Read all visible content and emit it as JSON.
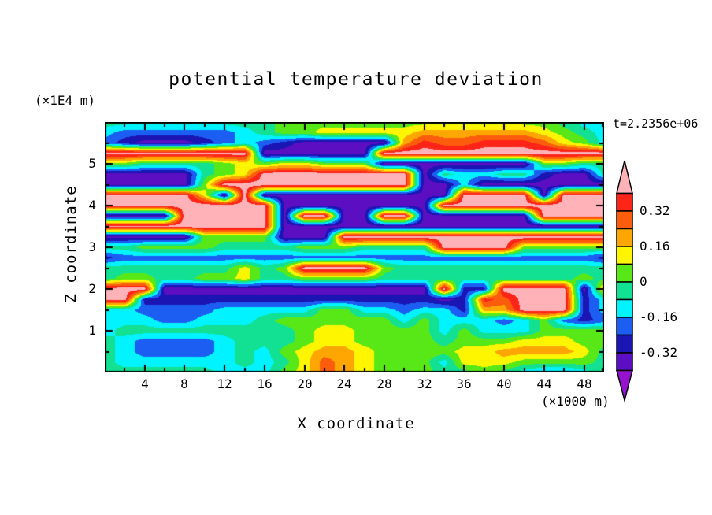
{
  "chart_data": {
    "type": "filled_contour",
    "title": "potential temperature deviation",
    "time_label": "t=2.2356e+06",
    "xlabel": "X coordinate",
    "x_unit": "(×1000 m)",
    "ylabel": "Z coordinate",
    "y_unit": "(×1E4 m)",
    "x_range": [
      0,
      50
    ],
    "z_range": [
      0,
      6
    ],
    "x_axis": {
      "major": [
        4,
        8,
        12,
        16,
        20,
        24,
        28,
        32,
        36,
        40,
        44,
        48
      ],
      "labels": [
        "4",
        "8",
        "12",
        "16",
        "20",
        "24",
        "28",
        "32",
        "36",
        "40",
        "44",
        "48"
      ],
      "minor": [
        2,
        6,
        10,
        14,
        18,
        22,
        26,
        30,
        34,
        38,
        42,
        46,
        50
      ]
    },
    "z_axis": {
      "major": [
        1,
        2,
        3,
        4,
        5
      ],
      "labels": [
        "1",
        "2",
        "3",
        "4",
        "5"
      ],
      "minor": [
        0.5,
        1.5,
        2.5,
        3.5,
        4.5,
        5.5
      ]
    },
    "levels": [
      -0.4,
      -0.32,
      -0.24,
      -0.16,
      -0.08,
      0.0,
      0.08,
      0.16,
      0.24,
      0.32,
      0.4
    ],
    "colors": [
      "#9512cf",
      "#5c0ec2",
      "#1a15b3",
      "#1c5ef2",
      "#00f3ff",
      "#12e193",
      "#59e817",
      "#fef600",
      "#ffa602",
      "#fc5d0d",
      "#ff2418",
      "#ffb3b8"
    ],
    "colorbar": {
      "labels": [
        "0.32",
        "0.16",
        "0",
        "-0.16",
        "-0.32"
      ],
      "label_boundaries": [
        0.32,
        0.16,
        0.0,
        -0.16,
        -0.32
      ]
    },
    "grid": {
      "x": [
        0,
        2,
        4,
        6,
        8,
        10,
        12,
        14,
        16,
        18,
        20,
        22,
        24,
        26,
        28,
        30,
        32,
        34,
        36,
        38,
        40,
        42,
        44,
        46,
        48,
        50
      ],
      "z": [
        6.0,
        5.75,
        5.5,
        5.25,
        5.0,
        4.75,
        4.5,
        4.25,
        4.0,
        3.75,
        3.5,
        3.25,
        3.0,
        2.75,
        2.5,
        2.25,
        2.0,
        1.75,
        1.5,
        1.25,
        1.0,
        0.75,
        0.5,
        0.25,
        0.0
      ],
      "values": [
        [
          -0.04,
          -0.04,
          -0.04,
          -0.04,
          -0.04,
          -0.04,
          -0.04,
          -0.04,
          -0.04,
          0.04,
          0.04,
          0.04,
          0.04,
          0.04,
          0.04,
          0.04,
          0.04,
          0.04,
          0.04,
          0.04,
          0.04,
          0.04,
          0.04,
          -0.04,
          -0.12,
          -0.12
        ],
        [
          -0.12,
          -0.2,
          -0.2,
          -0.2,
          -0.2,
          -0.2,
          -0.2,
          -0.12,
          -0.04,
          0.04,
          0.04,
          0.12,
          0.12,
          0.12,
          0.12,
          0.12,
          0.2,
          0.2,
          0.2,
          0.2,
          0.2,
          0.2,
          0.12,
          0.04,
          -0.04,
          -0.12
        ],
        [
          -0.2,
          -0.28,
          -0.36,
          -0.36,
          -0.36,
          -0.28,
          -0.2,
          -0.12,
          -0.2,
          -0.28,
          -0.36,
          -0.36,
          -0.36,
          -0.36,
          -0.36,
          0.2,
          0.36,
          0.28,
          0.28,
          0.36,
          0.36,
          0.36,
          0.28,
          0.12,
          0.04,
          -0.12
        ],
        [
          0.45,
          0.45,
          0.45,
          0.45,
          0.45,
          0.45,
          0.45,
          0.45,
          -0.36,
          -0.36,
          -0.36,
          -0.36,
          -0.36,
          -0.36,
          0.45,
          0.45,
          0.45,
          0.45,
          0.45,
          0.45,
          0.45,
          0.45,
          0.45,
          0.45,
          0.45,
          0.45
        ],
        [
          0.04,
          0.04,
          -0.04,
          -0.04,
          -0.04,
          -0.04,
          0.04,
          0.12,
          0.04,
          0.12,
          0.12,
          0.04,
          0.04,
          0.04,
          -0.36,
          -0.36,
          -0.36,
          -0.36,
          -0.36,
          -0.36,
          -0.36,
          -0.36,
          0.04,
          0.04,
          -0.04,
          -0.04
        ],
        [
          -0.36,
          -0.36,
          -0.36,
          -0.36,
          -0.36,
          -0.04,
          0.04,
          0.12,
          0.45,
          0.45,
          0.45,
          0.45,
          0.45,
          0.45,
          0.45,
          0.45,
          -0.36,
          -0.04,
          -0.12,
          -0.12,
          -0.04,
          -0.04,
          -0.28,
          -0.36,
          -0.36,
          -0.04
        ],
        [
          -0.36,
          -0.36,
          -0.36,
          -0.36,
          -0.36,
          0.04,
          0.45,
          0.45,
          0.45,
          0.45,
          0.45,
          0.45,
          0.45,
          0.45,
          0.45,
          0.45,
          -0.36,
          -0.36,
          -0.12,
          -0.36,
          -0.36,
          -0.36,
          -0.36,
          -0.36,
          -0.36,
          -0.36
        ],
        [
          0.45,
          0.45,
          0.45,
          0.45,
          0.45,
          0.12,
          -0.36,
          0.45,
          -0.36,
          -0.36,
          -0.36,
          -0.36,
          -0.36,
          -0.36,
          -0.36,
          -0.36,
          -0.36,
          -0.36,
          0.45,
          0.45,
          0.45,
          0.45,
          -0.36,
          0.45,
          0.45,
          0.45
        ],
        [
          0.45,
          0.45,
          0.45,
          0.45,
          0.45,
          0.45,
          0.45,
          0.45,
          0.45,
          -0.36,
          -0.36,
          -0.36,
          -0.36,
          -0.36,
          -0.36,
          -0.36,
          -0.36,
          0.45,
          0.45,
          0.45,
          0.45,
          0.45,
          0.45,
          0.45,
          0.45,
          0.45
        ],
        [
          -0.36,
          -0.36,
          -0.36,
          -0.36,
          0.45,
          0.45,
          0.45,
          0.45,
          0.45,
          -0.36,
          0.45,
          0.45,
          -0.36,
          -0.36,
          0.45,
          0.45,
          -0.36,
          -0.36,
          -0.36,
          -0.36,
          -0.36,
          -0.36,
          0.45,
          0.45,
          0.45,
          0.45
        ],
        [
          0.45,
          0.45,
          0.45,
          0.45,
          0.45,
          0.45,
          0.45,
          0.45,
          0.45,
          -0.36,
          -0.36,
          -0.36,
          -0.36,
          -0.36,
          -0.36,
          -0.36,
          -0.36,
          -0.36,
          -0.36,
          -0.36,
          -0.36,
          -0.36,
          -0.36,
          -0.36,
          -0.36,
          -0.36
        ],
        [
          -0.36,
          -0.36,
          -0.36,
          -0.36,
          -0.36,
          0.04,
          0.04,
          0.04,
          0.04,
          -0.36,
          -0.36,
          -0.36,
          0.45,
          0.45,
          0.45,
          0.45,
          0.45,
          0.45,
          0.45,
          0.45,
          0.45,
          0.45,
          0.45,
          0.45,
          0.45,
          0.45
        ],
        [
          -0.04,
          -0.04,
          0.04,
          0.04,
          0.04,
          0.04,
          -0.04,
          -0.04,
          -0.04,
          -0.04,
          0.04,
          0.04,
          0.04,
          -0.04,
          -0.04,
          -0.04,
          -0.04,
          0.45,
          0.45,
          0.45,
          0.45,
          0.04,
          0.04,
          0.04,
          0.04,
          0.04
        ],
        [
          -0.28,
          -0.2,
          -0.2,
          -0.2,
          -0.2,
          -0.2,
          -0.2,
          -0.2,
          -0.2,
          -0.2,
          -0.2,
          -0.2,
          -0.2,
          -0.2,
          -0.2,
          -0.2,
          -0.2,
          -0.2,
          -0.2,
          -0.2,
          -0.2,
          -0.2,
          -0.2,
          -0.2,
          -0.2,
          -0.28
        ],
        [
          -0.04,
          -0.04,
          -0.04,
          -0.04,
          -0.04,
          -0.04,
          -0.04,
          0.12,
          -0.04,
          0.04,
          0.45,
          0.45,
          0.45,
          0.45,
          0.04,
          -0.04,
          -0.04,
          -0.04,
          -0.04,
          -0.04,
          -0.04,
          -0.04,
          -0.04,
          -0.04,
          -0.04,
          -0.04
        ],
        [
          -0.04,
          0.04,
          0.04,
          -0.04,
          -0.04,
          0.04,
          0.04,
          0.12,
          -0.04,
          -0.04,
          0.04,
          0.04,
          0.04,
          0.04,
          -0.04,
          -0.04,
          -0.04,
          -0.04,
          -0.04,
          -0.04,
          -0.04,
          -0.04,
          -0.04,
          -0.04,
          0.04,
          -0.04
        ],
        [
          0.45,
          0.45,
          0.45,
          -0.36,
          -0.36,
          -0.36,
          -0.36,
          -0.36,
          -0.36,
          -0.36,
          -0.36,
          -0.36,
          -0.36,
          -0.36,
          -0.36,
          -0.36,
          -0.36,
          0.45,
          -0.28,
          -0.28,
          0.45,
          0.45,
          0.45,
          0.45,
          -0.36,
          0.2
        ],
        [
          0.45,
          0.45,
          -0.28,
          -0.28,
          -0.28,
          -0.28,
          -0.28,
          -0.28,
          -0.28,
          -0.28,
          -0.28,
          -0.28,
          -0.28,
          -0.28,
          -0.28,
          -0.28,
          -0.28,
          -0.36,
          -0.28,
          0.36,
          0.28,
          0.45,
          0.45,
          0.45,
          -0.28,
          -0.12
        ],
        [
          -0.12,
          -0.12,
          -0.2,
          -0.2,
          -0.2,
          -0.2,
          -0.12,
          -0.12,
          -0.12,
          -0.12,
          -0.12,
          0.04,
          0.04,
          -0.12,
          -0.12,
          -0.2,
          -0.12,
          -0.12,
          -0.28,
          0.2,
          0.2,
          0.45,
          0.45,
          0.45,
          -0.28,
          -0.12
        ],
        [
          -0.12,
          -0.12,
          -0.12,
          -0.2,
          -0.2,
          -0.12,
          -0.12,
          -0.12,
          -0.04,
          0.04,
          0.04,
          0.04,
          0.04,
          0.04,
          0.04,
          -0.12,
          0.04,
          -0.12,
          -0.12,
          -0.12,
          -0.2,
          -0.12,
          0.04,
          -0.2,
          -0.28,
          -0.2
        ],
        [
          -0.12,
          -0.04,
          -0.04,
          -0.04,
          -0.04,
          -0.04,
          -0.04,
          -0.04,
          -0.04,
          -0.04,
          0.04,
          0.12,
          0.12,
          0.04,
          0.04,
          0.04,
          0.04,
          -0.12,
          0.04,
          -0.12,
          -0.12,
          -0.12,
          0.04,
          0.04,
          0.04,
          0.04
        ],
        [
          -0.04,
          -0.12,
          -0.2,
          -0.2,
          -0.2,
          -0.2,
          -0.12,
          -0.04,
          -0.04,
          -0.04,
          0.04,
          0.12,
          0.12,
          0.04,
          0.04,
          0.04,
          0.04,
          -0.04,
          0.04,
          0.04,
          0.04,
          0.12,
          0.12,
          0.12,
          0.04,
          0.04
        ],
        [
          -0.04,
          -0.12,
          -0.2,
          -0.2,
          -0.2,
          -0.2,
          -0.12,
          -0.04,
          -0.12,
          0.04,
          0.12,
          0.2,
          0.2,
          0.12,
          0.04,
          0.04,
          0.04,
          0.04,
          0.12,
          0.12,
          0.2,
          0.2,
          0.2,
          0.2,
          0.12,
          -0.04
        ],
        [
          -0.04,
          -0.12,
          -0.12,
          -0.12,
          -0.12,
          -0.12,
          -0.12,
          -0.04,
          -0.12,
          -0.04,
          0.12,
          0.28,
          0.2,
          0.12,
          0.04,
          0.04,
          0.04,
          -0.12,
          0.12,
          0.12,
          0.12,
          0.04,
          0.04,
          0.04,
          0.04,
          -0.04
        ],
        [
          -0.04,
          -0.04,
          -0.04,
          -0.04,
          -0.04,
          -0.04,
          -0.12,
          -0.12,
          -0.12,
          0.04,
          0.12,
          0.28,
          0.2,
          0.12,
          0.04,
          0.04,
          0.04,
          -0.04,
          -0.04,
          0.04,
          -0.04,
          -0.12,
          -0.2,
          -0.2,
          -0.12,
          -0.04
        ]
      ]
    }
  }
}
